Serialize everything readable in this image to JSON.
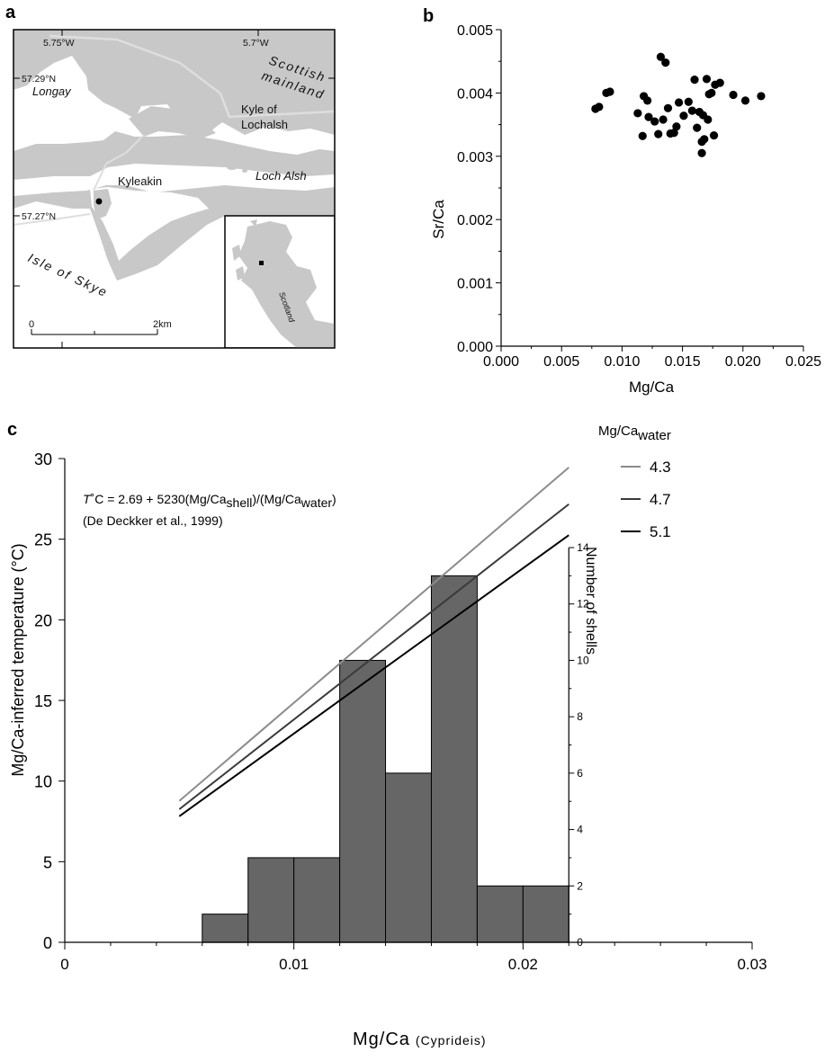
{
  "panels": {
    "a": "a",
    "b": "b",
    "c": "c"
  },
  "map": {
    "lon_labels": [
      "5.75°W",
      "5.7°W"
    ],
    "lat_labels": [
      "57.29°N",
      "57.27°N"
    ],
    "places": {
      "scottish": "Scottish",
      "mainland": "mainland",
      "longay": "Longay",
      "kyle_of": "Kyle of",
      "lochalsh": "Lochalsh",
      "kyleakin": "Kyleakin",
      "loch_alsh": "Loch Alsh",
      "isle_of_skye": "Isle of Skye",
      "scotland": "Scotland"
    },
    "scale": {
      "start": "0",
      "end": "2km"
    },
    "colors": {
      "land": "#c8c8c8",
      "water": "#ffffff",
      "roads": "#dedede"
    }
  },
  "chart_data": [
    {
      "type": "scatter",
      "xlabel": "Mg/Ca",
      "ylabel": "Sr/Ca",
      "xlim": [
        0,
        0.025
      ],
      "ylim": [
        0,
        0.005
      ],
      "x_ticks": [
        "0.000",
        "0.005",
        "0.010",
        "0.015",
        "0.020",
        "0.025"
      ],
      "y_ticks": [
        "0.000",
        "0.001",
        "0.002",
        "0.003",
        "0.004",
        "0.005"
      ],
      "grid": false,
      "points": [
        {
          "x": 0.0078,
          "y": 0.00375
        },
        {
          "x": 0.0081,
          "y": 0.00378
        },
        {
          "x": 0.0087,
          "y": 0.004
        },
        {
          "x": 0.009,
          "y": 0.00402
        },
        {
          "x": 0.0113,
          "y": 0.00368
        },
        {
          "x": 0.0117,
          "y": 0.00332
        },
        {
          "x": 0.0118,
          "y": 0.00395
        },
        {
          "x": 0.0121,
          "y": 0.00388
        },
        {
          "x": 0.0122,
          "y": 0.00362
        },
        {
          "x": 0.0127,
          "y": 0.00355
        },
        {
          "x": 0.013,
          "y": 0.00335
        },
        {
          "x": 0.0132,
          "y": 0.00457
        },
        {
          "x": 0.0134,
          "y": 0.00358
        },
        {
          "x": 0.0136,
          "y": 0.00448
        },
        {
          "x": 0.0138,
          "y": 0.00376
        },
        {
          "x": 0.014,
          "y": 0.00336
        },
        {
          "x": 0.0143,
          "y": 0.00337
        },
        {
          "x": 0.0145,
          "y": 0.00347
        },
        {
          "x": 0.0147,
          "y": 0.00385
        },
        {
          "x": 0.0151,
          "y": 0.00364
        },
        {
          "x": 0.0155,
          "y": 0.00386
        },
        {
          "x": 0.0158,
          "y": 0.00372
        },
        {
          "x": 0.016,
          "y": 0.00421
        },
        {
          "x": 0.0162,
          "y": 0.00345
        },
        {
          "x": 0.0164,
          "y": 0.0037
        },
        {
          "x": 0.0166,
          "y": 0.00305
        },
        {
          "x": 0.0166,
          "y": 0.00323
        },
        {
          "x": 0.0167,
          "y": 0.00365
        },
        {
          "x": 0.0168,
          "y": 0.00327
        },
        {
          "x": 0.017,
          "y": 0.00422
        },
        {
          "x": 0.0171,
          "y": 0.00358
        },
        {
          "x": 0.0172,
          "y": 0.00398
        },
        {
          "x": 0.0174,
          "y": 0.004
        },
        {
          "x": 0.0176,
          "y": 0.00333
        },
        {
          "x": 0.0177,
          "y": 0.00413
        },
        {
          "x": 0.0181,
          "y": 0.00416
        },
        {
          "x": 0.0192,
          "y": 0.00397
        },
        {
          "x": 0.0202,
          "y": 0.00388
        },
        {
          "x": 0.0215,
          "y": 0.00395
        }
      ]
    },
    {
      "type": "line",
      "xlabel": "Mg/Ca",
      "xlabel_sub": "(Cyprideis)",
      "ylabel": "Mg/Ca-inferred temperature (°C)",
      "xlim": [
        0,
        0.03
      ],
      "ylim": [
        0,
        30
      ],
      "x_ticks": [
        "0",
        "0.01",
        "0.02",
        "0.03"
      ],
      "y_ticks": [
        "0",
        "5",
        "10",
        "15",
        "20",
        "25",
        "30"
      ],
      "legend_title": "Mg/Ca",
      "legend_title_sub": "water",
      "legend_position": "top-right",
      "equation": {
        "italic": "T",
        "part1": "˚C = 2.69 + 5230(Mg/Ca",
        "sub1": "shell",
        "part2": ")/(Mg/Ca",
        "sub2": "water",
        "part3": ")"
      },
      "citation": "(De Deckker et al., 1999)",
      "series": [
        {
          "name": "4.3",
          "mgca_water": 4.3,
          "color": "#8c8c8c",
          "x": [
            0.005,
            0.022
          ]
        },
        {
          "name": "4.7",
          "mgca_water": 4.7,
          "color": "#3a3a3a",
          "x": [
            0.005,
            0.022
          ]
        },
        {
          "name": "5.1",
          "mgca_water": 5.1,
          "color": "#000000",
          "x": [
            0.005,
            0.022
          ]
        }
      ]
    },
    {
      "type": "bar",
      "subtype": "histogram",
      "ylabel": "Number of shells",
      "ylim": [
        0,
        14
      ],
      "y_ticks": [
        "0",
        "2",
        "4",
        "6",
        "8",
        "10",
        "12",
        "14"
      ],
      "bin_edges": [
        0.006,
        0.008,
        0.01,
        0.012,
        0.014,
        0.016,
        0.018,
        0.02,
        0.022
      ],
      "values": [
        1,
        3,
        3,
        10,
        6,
        13,
        2,
        2
      ],
      "bar_color": "#666666"
    }
  ]
}
